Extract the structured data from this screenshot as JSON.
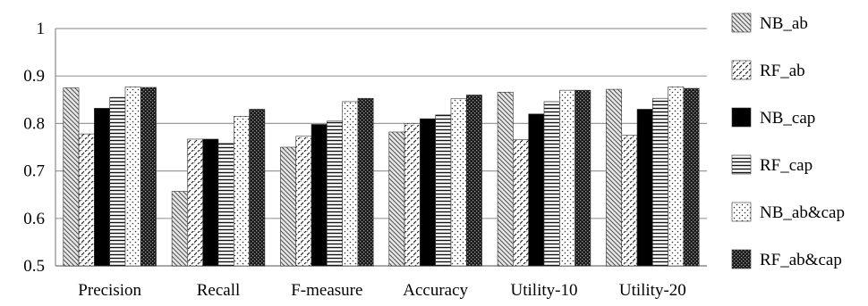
{
  "chart_data": {
    "type": "bar",
    "title": "",
    "xlabel": "",
    "ylabel": "",
    "ylim": [
      0.5,
      1
    ],
    "yticks": [
      "0.5",
      "0.6",
      "0.7",
      "0.8",
      "0.9",
      "1"
    ],
    "categories": [
      "Precision",
      "Recall",
      "F-measure",
      "Accuracy",
      "Utility-10",
      "Utility-20"
    ],
    "series": [
      {
        "name": "NB_ab",
        "pattern": "diag-down",
        "values": [
          0.875,
          0.657,
          0.75,
          0.782,
          0.866,
          0.872
        ]
      },
      {
        "name": "RF_ab",
        "pattern": "diag-up-dash",
        "values": [
          0.778,
          0.767,
          0.773,
          0.8,
          0.766,
          0.775
        ]
      },
      {
        "name": "NB_cap",
        "pattern": "solid-black",
        "values": [
          0.832,
          0.767,
          0.798,
          0.81,
          0.82,
          0.83
        ]
      },
      {
        "name": "RF_cap",
        "pattern": "horizontal",
        "values": [
          0.855,
          0.758,
          0.805,
          0.818,
          0.846,
          0.853
        ]
      },
      {
        "name": "NB_ab&cap",
        "pattern": "dots",
        "values": [
          0.877,
          0.815,
          0.846,
          0.852,
          0.87,
          0.877
        ]
      },
      {
        "name": "RF_ab&cap",
        "pattern": "checker",
        "values": [
          0.876,
          0.83,
          0.853,
          0.86,
          0.87,
          0.874
        ]
      }
    ],
    "grid": true,
    "legend": "right"
  }
}
